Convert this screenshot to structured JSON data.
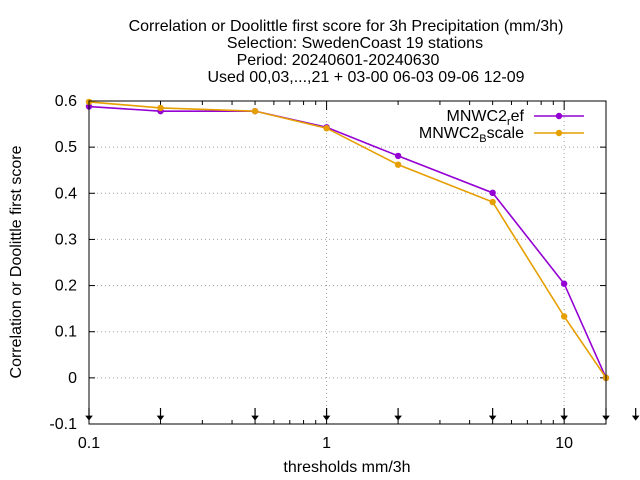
{
  "chart_data": {
    "type": "line",
    "title_lines": [
      "Correlation or Doolittle first score  for 3h Precipitation (mm/3h)",
      "Selection: SwedenCoast     19 stations",
      "Period: 20240601-20240630",
      "Used 00,03,...,21 + 03-00 06-03 09-06 12-09"
    ],
    "xlabel": "thresholds mm/3h",
    "ylabel": "Correlation or Doolittle first score",
    "x_scale": "log",
    "xlim": [
      0.1,
      15
    ],
    "ylim": [
      -0.1,
      0.6
    ],
    "x_ticks": [
      {
        "value": 0.1,
        "label": "0.1"
      },
      {
        "value": 1,
        "label": "1"
      },
      {
        "value": 10,
        "label": "10"
      }
    ],
    "y_ticks": [
      {
        "value": 0.6,
        "label": "0.6"
      },
      {
        "value": 0.5,
        "label": "0.5"
      },
      {
        "value": 0.4,
        "label": "0.4"
      },
      {
        "value": 0.3,
        "label": "0.3"
      },
      {
        "value": 0.2,
        "label": "0.2"
      },
      {
        "value": 0.1,
        "label": "0.1"
      },
      {
        "value": 0,
        "label": "0"
      },
      {
        "value": -0.1,
        "label": "-0.1"
      }
    ],
    "grid": true,
    "legend_position": "top-right",
    "threshold_markers": [
      0.1,
      0.2,
      0.5,
      1,
      2,
      5,
      10,
      15,
      20
    ],
    "x": [
      0.1,
      0.2,
      0.5,
      1,
      2,
      5,
      10,
      15
    ],
    "series": [
      {
        "name": "MNWC2_ref",
        "legend_main": "MNWC2",
        "legend_sub": "r",
        "legend_rest": "ef",
        "color": "#9400d3",
        "values": [
          0.588,
          0.578,
          0.578,
          0.543,
          0.481,
          0.401,
          0.204,
          0.0
        ]
      },
      {
        "name": "MNWC2_Bscale",
        "legend_main": "MNWC2",
        "legend_sub": "B",
        "legend_rest": "scale",
        "color": "#e69f00",
        "values": [
          0.598,
          0.585,
          0.578,
          0.541,
          0.462,
          0.381,
          0.133,
          0.0
        ]
      }
    ]
  }
}
